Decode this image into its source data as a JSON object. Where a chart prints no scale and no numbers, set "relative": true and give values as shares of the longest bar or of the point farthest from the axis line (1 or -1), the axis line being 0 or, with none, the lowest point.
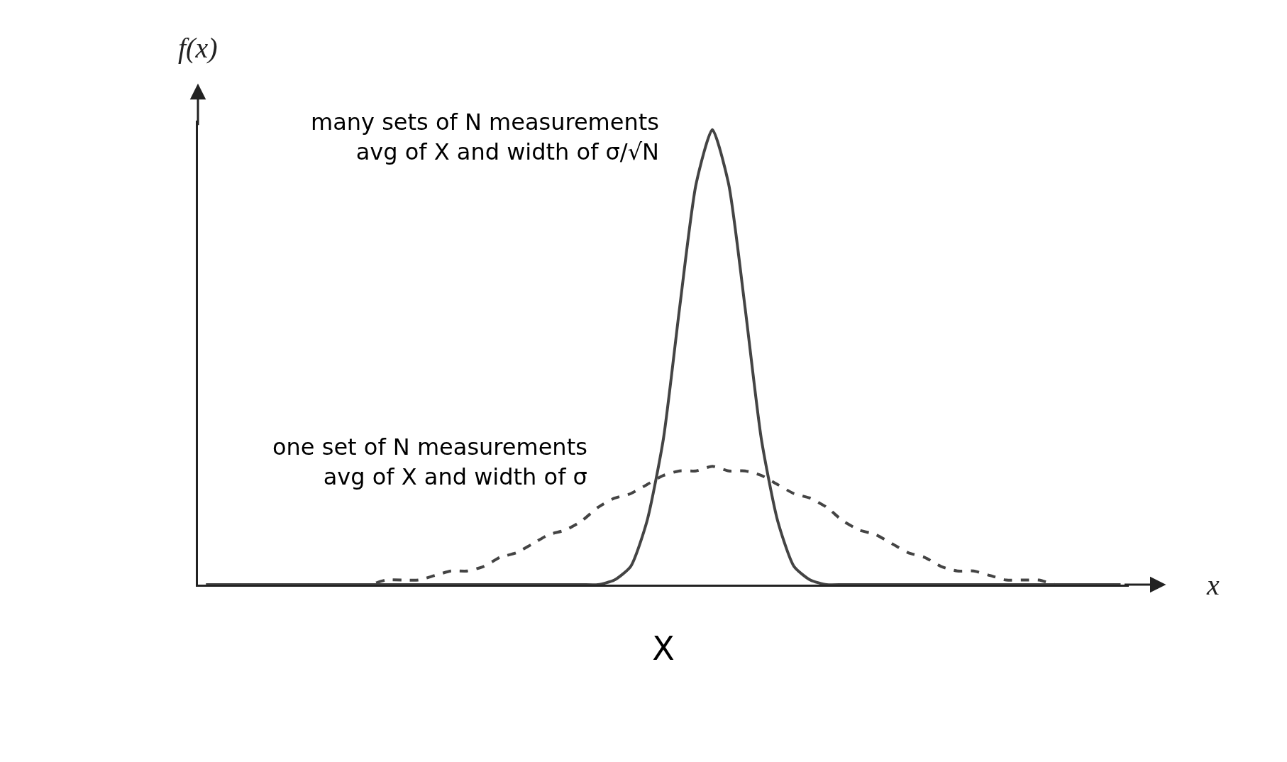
{
  "chart_data": {
    "type": "line",
    "relative": true,
    "ylabel": "f(x)",
    "xlabel": "X",
    "categories": [
      null,
      null,
      null,
      null,
      null,
      null,
      null,
      null,
      null,
      null,
      null,
      null,
      null,
      null,
      null,
      null,
      null,
      null,
      null,
      null,
      null,
      null,
      null,
      null,
      null,
      null,
      null,
      null,
      null,
      null,
      null,
      null,
      null,
      null,
      null,
      null,
      null,
      null,
      null,
      null,
      null,
      null,
      null,
      null,
      null,
      null,
      null,
      null,
      null,
      null,
      null,
      null,
      null,
      null,
      null,
      null,
      null
    ],
    "series": [
      {
        "color": "#444444",
        "line_style": "solid",
        "values": [
          0,
          0,
          0,
          0,
          0,
          0,
          0,
          0,
          0,
          0,
          0,
          0,
          0,
          0,
          0,
          0,
          0,
          0,
          0,
          0,
          0,
          0,
          0,
          0,
          0,
          0.01,
          0.04,
          0.14,
          0.32,
          0.61,
          0.88,
          1,
          0.88,
          0.61,
          0.32,
          0.14,
          0.04,
          0.01,
          0,
          0,
          0,
          0,
          0,
          0,
          0,
          0,
          0,
          0,
          0,
          0,
          0,
          0,
          0,
          0,
          0,
          0,
          0
        ]
      },
      {
        "color": "#444444",
        "line_style": "dashed",
        "values": [
          0,
          0,
          0,
          0,
          0,
          0,
          0,
          0,
          0,
          0,
          0,
          0.01,
          0.01,
          0.01,
          0.02,
          0.03,
          0.03,
          0.04,
          0.06,
          0.07,
          0.09,
          0.11,
          0.12,
          0.14,
          0.17,
          0.19,
          0.2,
          0.22,
          0.24,
          0.25,
          0.25,
          0.26,
          0.25,
          0.25,
          0.24,
          0.22,
          0.2,
          0.19,
          0.17,
          0.14,
          0.12,
          0.11,
          0.09,
          0.07,
          0.06,
          0.04,
          0.03,
          0.03,
          0.02,
          0.01,
          0.01,
          0.01,
          0,
          0,
          0,
          0,
          0
        ]
      }
    ],
    "annotations": [
      "many sets of N measurements\navg of X and width of σ/√N",
      "one set of N measurements\navg of X and width of σ",
      "x"
    ],
    "marker": "none"
  }
}
